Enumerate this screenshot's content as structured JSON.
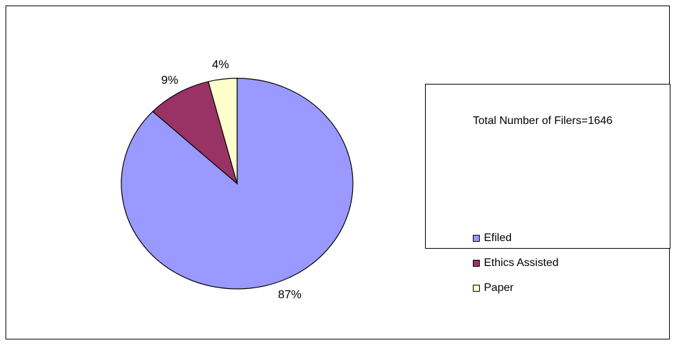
{
  "chart_data": {
    "type": "pie",
    "categories": [
      "Efiled",
      "Ethics Assisted",
      "Paper"
    ],
    "values": [
      87,
      9,
      4
    ],
    "value_labels": [
      "87%",
      "9%",
      "4%"
    ],
    "colors": [
      "#9999ff",
      "#993366",
      "#ffffcc"
    ],
    "legend": {
      "title": "Total Number of Filers=1646",
      "entries": [
        "Efiled",
        "Ethics Assisted",
        "Paper"
      ],
      "placement": "right"
    }
  }
}
